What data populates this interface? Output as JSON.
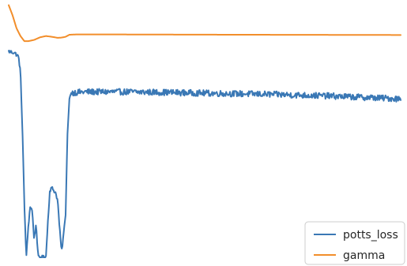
{
  "chart_data": {
    "type": "line",
    "title": "",
    "xlabel": "",
    "ylabel": "",
    "axes_visible": false,
    "grid": false,
    "legend": {
      "placement": "bottom-right",
      "entries": [
        "potts_loss",
        "gamma"
      ]
    },
    "ylim": [
      0,
      1.0
    ],
    "series": [
      {
        "name": "potts_loss",
        "color": "#3a78b5",
        "noise": 0.012,
        "points": [
          [
            0,
            0.8
          ],
          [
            3,
            0.795
          ],
          [
            5,
            0.78
          ],
          [
            6,
            0.72
          ],
          [
            7,
            0.5
          ],
          [
            8,
            0.2
          ],
          [
            9,
            0.0
          ],
          [
            10,
            0.12
          ],
          [
            11,
            0.2
          ],
          [
            12,
            0.18
          ],
          [
            13,
            0.07
          ],
          [
            14,
            0.13
          ],
          [
            15,
            0.0
          ],
          [
            16,
            0.0
          ],
          [
            17,
            0.0
          ],
          [
            18,
            0.0
          ],
          [
            19,
            0.0
          ],
          [
            20,
            0.14
          ],
          [
            21,
            0.26
          ],
          [
            22,
            0.27
          ],
          [
            23,
            0.26
          ],
          [
            24,
            0.25
          ],
          [
            25,
            0.22
          ],
          [
            26,
            0.11
          ],
          [
            27,
            0.02
          ],
          [
            28,
            0.09
          ],
          [
            29,
            0.16
          ],
          [
            30,
            0.48
          ],
          [
            31,
            0.62
          ],
          [
            32,
            0.64
          ],
          [
            40,
            0.643
          ],
          [
            60,
            0.643
          ],
          [
            80,
            0.641
          ],
          [
            100,
            0.638
          ],
          [
            130,
            0.634
          ],
          [
            160,
            0.628
          ],
          [
            190,
            0.619
          ],
          [
            200,
            0.616
          ]
        ]
      },
      {
        "name": "gamma",
        "color": "#f28e2b",
        "noise": 0.0,
        "points": [
          [
            0,
            0.98
          ],
          [
            2,
            0.94
          ],
          [
            4,
            0.89
          ],
          [
            6,
            0.86
          ],
          [
            8,
            0.84
          ],
          [
            10,
            0.84
          ],
          [
            13,
            0.845
          ],
          [
            16,
            0.855
          ],
          [
            19,
            0.86
          ],
          [
            22,
            0.857
          ],
          [
            25,
            0.853
          ],
          [
            27,
            0.854
          ],
          [
            29,
            0.857
          ],
          [
            31,
            0.865
          ],
          [
            34,
            0.866
          ],
          [
            60,
            0.866
          ],
          [
            120,
            0.865
          ],
          [
            200,
            0.864
          ]
        ]
      }
    ]
  }
}
